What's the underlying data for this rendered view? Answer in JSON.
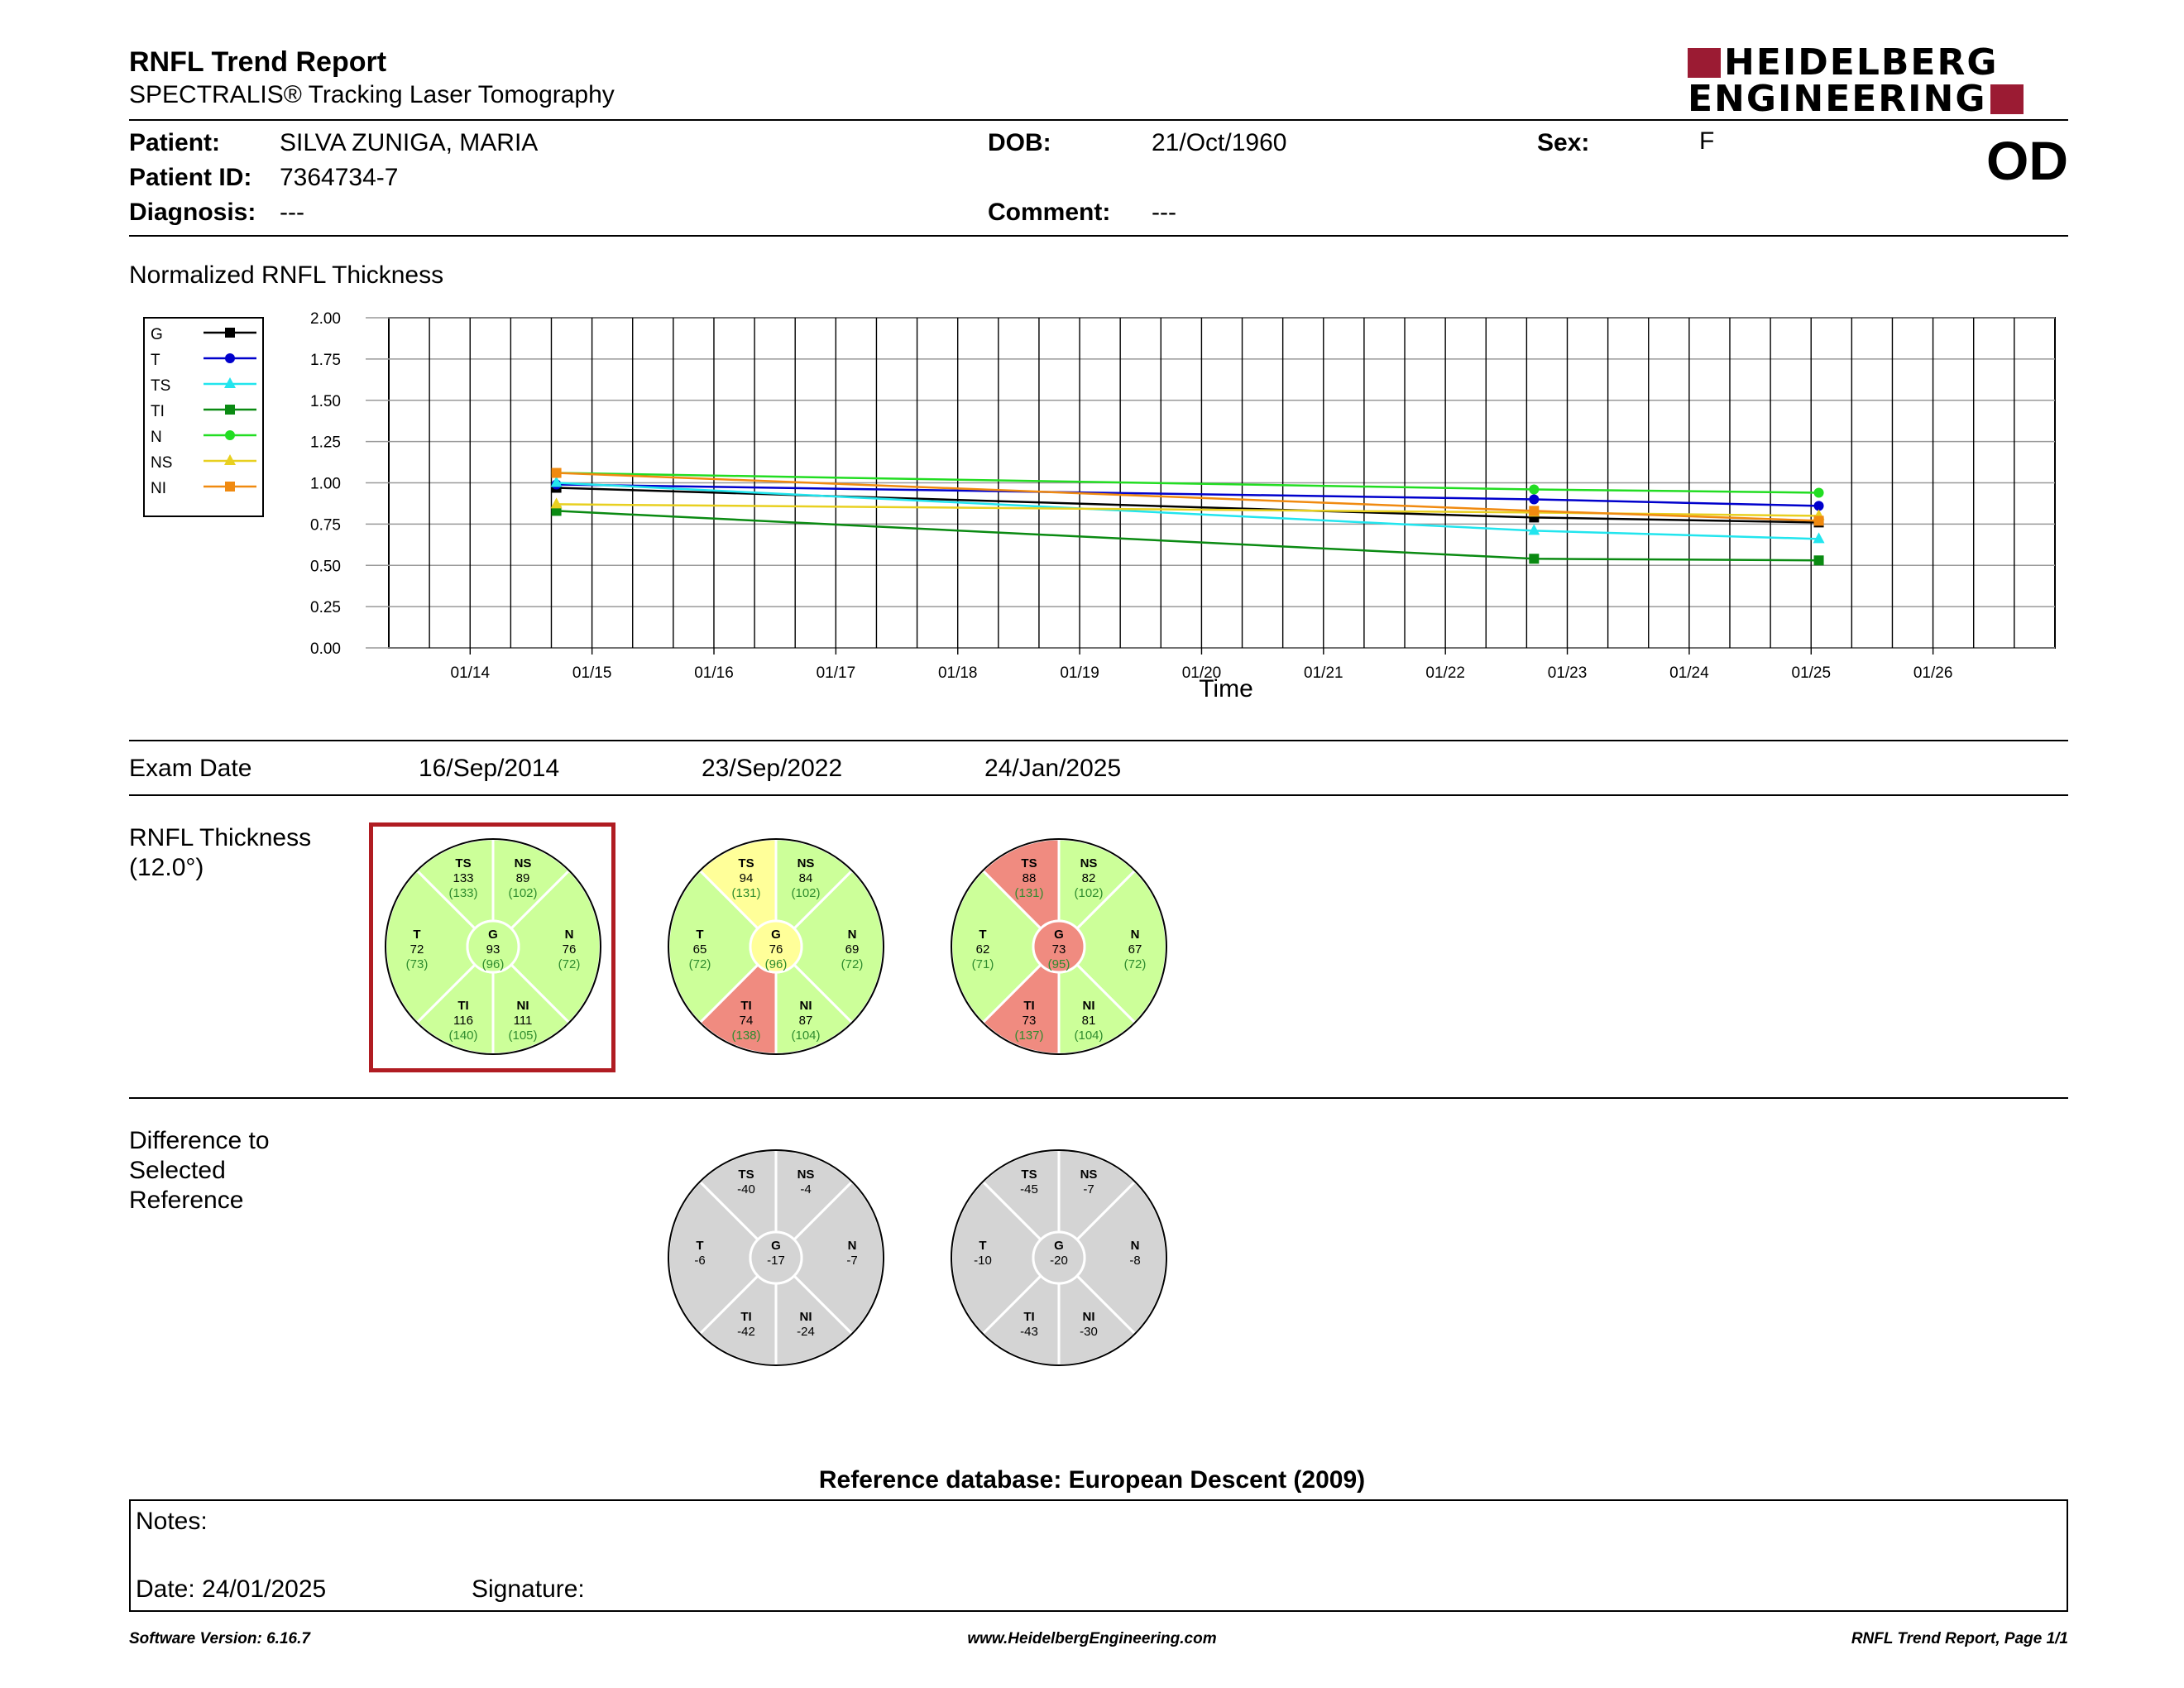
{
  "header": {
    "title": "RNFL Trend Report",
    "subtitle": "SPECTRALIS® Tracking Laser Tomography",
    "logo_line1": "HEIDELBERG",
    "logo_line2": "ENGINEERING",
    "eye": "OD"
  },
  "patient": {
    "patient_label": "Patient:",
    "patient_value": "SILVA ZUNIGA, MARIA",
    "id_label": "Patient ID:",
    "id_value": "7364734-7",
    "diagnosis_label": "Diagnosis:",
    "diagnosis_value": "---",
    "dob_label": "DOB:",
    "dob_value": "21/Oct/1960",
    "comment_label": "Comment:",
    "comment_value": "---",
    "sex_label": "Sex:",
    "sex_value": "F"
  },
  "chart_data": {
    "type": "line",
    "title": "Normalized RNFL Thickness",
    "xlabel": "Time",
    "ylabel": "",
    "x_ticks": [
      "01/14",
      "01/15",
      "01/16",
      "01/17",
      "01/18",
      "01/19",
      "01/20",
      "01/21",
      "01/22",
      "01/23",
      "01/24",
      "01/25",
      "01/26"
    ],
    "x_dates": [
      "2014-09-16",
      "2022-09-23",
      "2025-01-24"
    ],
    "ylim": [
      0,
      2.0
    ],
    "y_ticks": [
      "0.00",
      "0.25",
      "0.50",
      "0.75",
      "1.00",
      "1.25",
      "1.50",
      "1.75",
      "2.00"
    ],
    "grid": true,
    "legend": "left",
    "series": [
      {
        "name": "G",
        "color": "#000000",
        "marker": "square",
        "values": [
          0.97,
          0.79,
          0.76
        ]
      },
      {
        "name": "T",
        "color": "#0000cc",
        "marker": "circle",
        "values": [
          0.99,
          0.9,
          0.86
        ]
      },
      {
        "name": "TS",
        "color": "#22e5ee",
        "marker": "triangle",
        "values": [
          1.0,
          0.71,
          0.66
        ]
      },
      {
        "name": "TI",
        "color": "#0a8a12",
        "marker": "square",
        "values": [
          0.83,
          0.54,
          0.53
        ]
      },
      {
        "name": "N",
        "color": "#22dd22",
        "marker": "circle",
        "values": [
          1.06,
          0.96,
          0.94
        ]
      },
      {
        "name": "NS",
        "color": "#e8d020",
        "marker": "triangle",
        "values": [
          0.87,
          0.82,
          0.8
        ]
      },
      {
        "name": "NI",
        "color": "#f08a10",
        "marker": "square",
        "values": [
          1.06,
          0.83,
          0.77
        ]
      }
    ]
  },
  "exams": {
    "label": "Exam Date",
    "dates": [
      "16/Sep/2014",
      "23/Sep/2022",
      "24/Jan/2025"
    ]
  },
  "thickness": {
    "label_line1": "RNFL Thickness",
    "label_line2": "(12.0°)",
    "colors": {
      "green": "#ccff99",
      "yellow": "#ffff99",
      "red": "#f08b80",
      "gray": "#d4d4d4"
    },
    "circles": [
      {
        "sectors": {
          "TS": {
            "val": "133",
            "ref": "(133)",
            "c": "green"
          },
          "NS": {
            "val": "89",
            "ref": "(102)",
            "c": "green"
          },
          "T": {
            "val": "72",
            "ref": "(73)",
            "c": "green"
          },
          "N": {
            "val": "76",
            "ref": "(72)",
            "c": "green"
          },
          "TI": {
            "val": "116",
            "ref": "(140)",
            "c": "green"
          },
          "NI": {
            "val": "111",
            "ref": "(105)",
            "c": "green"
          },
          "G": {
            "val": "93",
            "ref": "(96)",
            "c": "green"
          }
        }
      },
      {
        "sectors": {
          "TS": {
            "val": "94",
            "ref": "(131)",
            "c": "yellow"
          },
          "NS": {
            "val": "84",
            "ref": "(102)",
            "c": "green"
          },
          "T": {
            "val": "65",
            "ref": "(72)",
            "c": "green"
          },
          "N": {
            "val": "69",
            "ref": "(72)",
            "c": "green"
          },
          "TI": {
            "val": "74",
            "ref": "(138)",
            "c": "red"
          },
          "NI": {
            "val": "87",
            "ref": "(104)",
            "c": "green"
          },
          "G": {
            "val": "76",
            "ref": "(96)",
            "c": "yellow"
          }
        }
      },
      {
        "sectors": {
          "TS": {
            "val": "88",
            "ref": "(131)",
            "c": "red"
          },
          "NS": {
            "val": "82",
            "ref": "(102)",
            "c": "green"
          },
          "T": {
            "val": "62",
            "ref": "(71)",
            "c": "green"
          },
          "N": {
            "val": "67",
            "ref": "(72)",
            "c": "green"
          },
          "TI": {
            "val": "73",
            "ref": "(137)",
            "c": "red"
          },
          "NI": {
            "val": "81",
            "ref": "(104)",
            "c": "green"
          },
          "G": {
            "val": "73",
            "ref": "(95)",
            "c": "red"
          }
        }
      }
    ]
  },
  "difference": {
    "label_line1": "Difference to",
    "label_line2": "Selected",
    "label_line3": "Reference",
    "circles": [
      {
        "sectors": {
          "TS": {
            "val": "-40"
          },
          "NS": {
            "val": "-4"
          },
          "T": {
            "val": "-6"
          },
          "N": {
            "val": "-7"
          },
          "TI": {
            "val": "-42"
          },
          "NI": {
            "val": "-24"
          },
          "G": {
            "val": "-17"
          }
        }
      },
      {
        "sectors": {
          "TS": {
            "val": "-45"
          },
          "NS": {
            "val": "-7"
          },
          "T": {
            "val": "-10"
          },
          "N": {
            "val": "-8"
          },
          "TI": {
            "val": "-43"
          },
          "NI": {
            "val": "-30"
          },
          "G": {
            "val": "-20"
          }
        }
      }
    ]
  },
  "reference_db": "Reference database: European Descent (2009)",
  "notes": {
    "notes_label": "Notes:",
    "date_label": "Date: 24/01/2025",
    "signature_label": "Signature:"
  },
  "footer": {
    "software": "Software Version: 6.16.7",
    "website": "www.HeidelbergEngineering.com",
    "page": "RNFL Trend Report, Page 1/1"
  }
}
